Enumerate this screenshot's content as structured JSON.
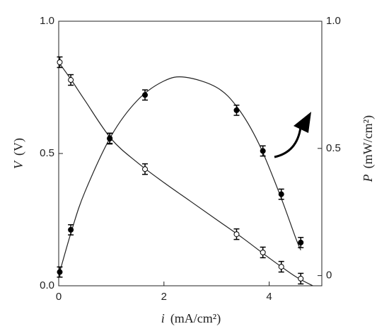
{
  "chart_data": {
    "type": "scatter",
    "x_label_symbol": "i",
    "x_label_unit": "(mA/cm²)",
    "y_label_symbol": "V",
    "y_label_unit": "(V)",
    "y2_label_symbol": "P",
    "y2_label_unit": "(mW/cm²)",
    "xlim": [
      0,
      5
    ],
    "xticks": [
      0,
      2,
      4
    ],
    "ylim": [
      0,
      1
    ],
    "yticks": [
      {
        "value": 0,
        "label": "0.0"
      },
      {
        "value": 0.5,
        "label": "0.5"
      },
      {
        "value": 1,
        "label": "1.0"
      }
    ],
    "y2lim": [
      -0.04,
      1
    ],
    "y2ticks": [
      0,
      {
        "value": 0.5,
        "label": "0.5"
      },
      {
        "value": 1,
        "label": "1.0"
      }
    ],
    "series": [
      {
        "marker": "open",
        "color": "#000000",
        "x": [
          0.02,
          0.23,
          0.97,
          1.64,
          3.38,
          3.88,
          4.23,
          4.6
        ],
        "values": [
          0.845,
          0.778,
          0.556,
          0.441,
          0.195,
          0.126,
          0.072,
          0.027
        ],
        "errors": [
          0.02,
          0.02,
          0.02,
          0.02,
          0.02,
          0.02,
          0.02,
          0.02
        ]
      },
      {
        "marker": "filled",
        "color": "#000000",
        "axis": "y2",
        "x": [
          0.02,
          0.23,
          0.97,
          1.64,
          3.38,
          3.88,
          4.23,
          4.6
        ],
        "values": [
          0.014,
          0.18,
          0.54,
          0.71,
          0.65,
          0.49,
          0.32,
          0.13
        ],
        "errors": [
          0.02,
          0.02,
          0.02,
          0.02,
          0.02,
          0.02,
          0.02,
          0.02
        ]
      }
    ],
    "fits": [
      {
        "x": [
          0,
          0.25,
          0.5,
          1,
          1.5,
          2,
          2.5,
          3,
          3.5,
          4,
          4.5,
          4.83
        ],
        "values": [
          0.845,
          0.775,
          0.7,
          0.555,
          0.465,
          0.39,
          0.32,
          0.25,
          0.18,
          0.105,
          0.035,
          0
        ]
      },
      {
        "axis": "y2",
        "x": [
          0,
          0.25,
          0.5,
          1,
          1.5,
          2,
          2.4,
          3,
          3.4,
          3.8,
          4.2,
          4.5,
          4.6
        ],
        "values": [
          0,
          0.18,
          0.33,
          0.55,
          0.69,
          0.765,
          0.78,
          0.74,
          0.66,
          0.52,
          0.32,
          0.15,
          0.1
        ]
      }
    ]
  }
}
